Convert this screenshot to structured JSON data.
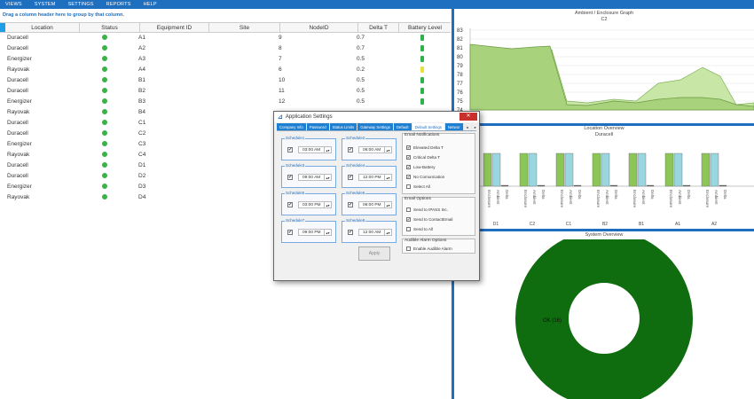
{
  "menu": [
    "VIEWS",
    "SYSTEM",
    "SETTINGS",
    "REPORTS",
    "HELP"
  ],
  "grid": {
    "group_hint": "Drag a column header here to group by that column.",
    "headers": [
      "Location",
      "Status",
      "Equipment ID",
      "Site",
      "NodeID",
      "Delta T",
      "Battery Level"
    ],
    "rows": [
      {
        "location": "Duracell",
        "equipment": "A1",
        "node": "9",
        "delta": "0.7",
        "battery": "green"
      },
      {
        "location": "Duracell",
        "equipment": "A2",
        "node": "8",
        "delta": "0.7",
        "battery": "green"
      },
      {
        "location": "Energizer",
        "equipment": "A3",
        "node": "7",
        "delta": "0.5",
        "battery": "green"
      },
      {
        "location": "Rayovak",
        "equipment": "A4",
        "node": "6",
        "delta": "0.2",
        "battery": "yellow"
      },
      {
        "location": "Duracell",
        "equipment": "B1",
        "node": "10",
        "delta": "0.5",
        "battery": "green"
      },
      {
        "location": "Duracell",
        "equipment": "B2",
        "node": "11",
        "delta": "0.5",
        "battery": "green"
      },
      {
        "location": "Energizer",
        "equipment": "B3",
        "node": "12",
        "delta": "0.5",
        "battery": "green"
      },
      {
        "location": "Rayovak",
        "equipment": "B4",
        "node": "",
        "delta": "",
        "battery": ""
      },
      {
        "location": "Duracell",
        "equipment": "C1",
        "node": "",
        "delta": "",
        "battery": ""
      },
      {
        "location": "Duracell",
        "equipment": "C2",
        "node": "",
        "delta": "",
        "battery": ""
      },
      {
        "location": "Energizer",
        "equipment": "C3",
        "node": "",
        "delta": "",
        "battery": ""
      },
      {
        "location": "Rayovak",
        "equipment": "C4",
        "node": "",
        "delta": "",
        "battery": ""
      },
      {
        "location": "Duracell",
        "equipment": "D1",
        "node": "",
        "delta": "",
        "battery": ""
      },
      {
        "location": "Duracell",
        "equipment": "D2",
        "node": "",
        "delta": "",
        "battery": ""
      },
      {
        "location": "Energizer",
        "equipment": "D3",
        "node": "",
        "delta": "",
        "battery": ""
      },
      {
        "location": "Rayovak",
        "equipment": "D4",
        "node": "",
        "delta": "",
        "battery": ""
      }
    ]
  },
  "ambient_chart": {
    "title": "Ambient / Enclosure Graph",
    "subtitle": "C2",
    "y_ticks": [
      "83",
      "82",
      "81",
      "80",
      "79",
      "78",
      "77",
      "76",
      "75",
      "74"
    ]
  },
  "location_chart": {
    "title": "Location Overview",
    "subtitle": "Duracell",
    "groups": [
      "D0",
      "D1",
      "C2",
      "C1",
      "B2",
      "B1",
      "A1",
      "A2"
    ],
    "bar_labels": [
      "Enclosure",
      "Ambient",
      "Delta"
    ]
  },
  "system_chart": {
    "title": "System Overview",
    "slice_label": "OK (16)"
  },
  "dialog": {
    "title": "Application Settings",
    "tabs": [
      "Company Info",
      "Password",
      "Status Limits",
      "Gateway Settings",
      "Default",
      "Default Settings",
      "Networ"
    ],
    "schedules": [
      {
        "label": "Schedule1",
        "time": "03:00 AM"
      },
      {
        "label": "Schedule2",
        "time": "06:00 AM"
      },
      {
        "label": "Schedule3",
        "time": "09:00 AM"
      },
      {
        "label": "Schedule4",
        "time": "12:00 PM"
      },
      {
        "label": "Schedule5",
        "time": "03:00 PM"
      },
      {
        "label": "Schedule6",
        "time": "06:00 PM"
      },
      {
        "label": "Schedule7",
        "time": "09:00 PM"
      },
      {
        "label": "Schedule8",
        "time": "12:00 AM"
      }
    ],
    "email_notifications": {
      "title": "Email Notifications",
      "options": [
        "Elevated Delta T",
        "Critical Delta T",
        "Low-Battery",
        "No Comunication",
        "Select All"
      ]
    },
    "email_options": {
      "title": "Email Options",
      "options": [
        "Send to IPASS Inc.",
        "Send to ContactEmail",
        "Send to All"
      ]
    },
    "audible": {
      "title": "Audible Alarm Options",
      "option": "Enable Audible Alarm"
    },
    "apply_label": "Apply"
  }
}
